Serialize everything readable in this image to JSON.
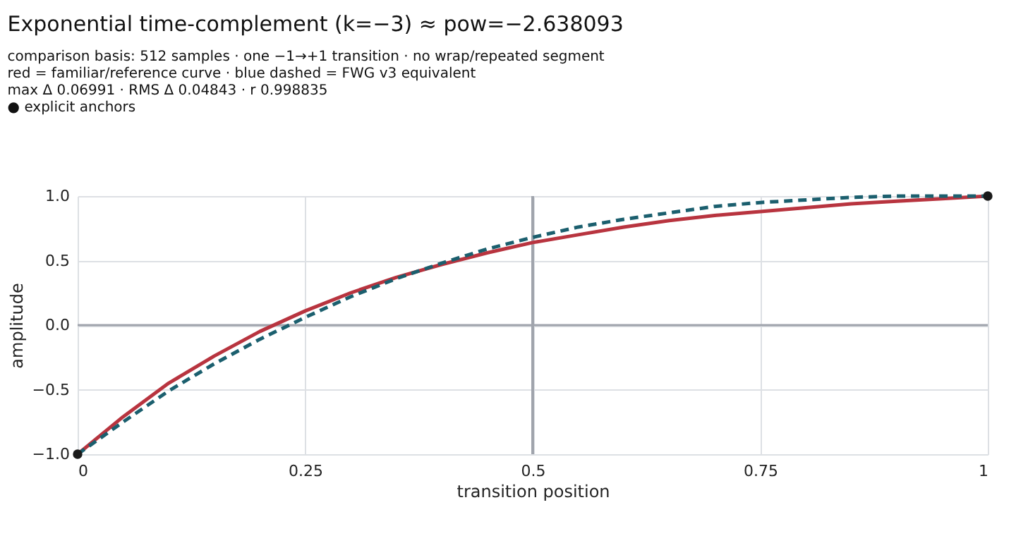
{
  "chart_data": {
    "type": "line",
    "title": "Exponential time-complement (k=−3) ≈ pow=−2.638093",
    "subtitle": "comparison basis: 512 samples · one −1→+1 transition · no wrap/repeated segment",
    "annotations": [
      "red = familiar/reference curve · blue dashed = FWG v3 equivalent",
      "max Δ 0.06991 · RMS Δ 0.04843 · r 0.998835",
      "● explicit anchors"
    ],
    "xlabel": "transition position",
    "ylabel": "amplitude",
    "x": [
      0,
      0.05,
      0.1,
      0.15,
      0.2,
      0.25,
      0.3,
      0.35,
      0.4,
      0.45,
      0.5,
      0.55,
      0.6,
      0.65,
      0.7,
      0.75,
      0.8,
      0.85,
      0.9,
      0.95,
      1
    ],
    "series": [
      {
        "color": "#b8343f",
        "line_style": "solid",
        "values": [
          -1,
          -0.71,
          -0.45,
          -0.24,
          -0.05,
          0.11,
          0.25,
          0.37,
          0.47,
          0.56,
          0.64,
          0.7,
          0.76,
          0.81,
          0.85,
          0.88,
          0.91,
          0.94,
          0.96,
          0.98,
          1
        ]
      },
      {
        "color": "#1b5f6e",
        "line_style": "dashed",
        "values": [
          -1,
          -0.75,
          -0.51,
          -0.3,
          -0.11,
          0.06,
          0.22,
          0.36,
          0.48,
          0.59,
          0.68,
          0.76,
          0.82,
          0.87,
          0.92,
          0.95,
          0.97,
          0.99,
          1.0,
          1.0,
          1
        ]
      },
      {
        "type": "scatter",
        "color": "#1a1a1a",
        "marker": "circle",
        "x": [
          0,
          1
        ],
        "values": [
          -1,
          1
        ]
      }
    ],
    "xlim": [
      0,
      1
    ],
    "ylim": [
      -1,
      1
    ],
    "xticks": [
      0,
      0.25,
      0.5,
      0.75,
      1
    ],
    "yticks": [
      {
        "value": -1,
        "label": "−1.0"
      },
      {
        "value": -0.5,
        "label": "−0.5"
      },
      {
        "value": 0,
        "label": "0.0"
      },
      {
        "value": 0.5,
        "label": "0.5"
      },
      {
        "value": 1,
        "label": "1.0"
      }
    ],
    "ref_lines": [
      {
        "axis": "y",
        "value": 0,
        "color": "#a0a4ac"
      },
      {
        "axis": "x",
        "value": 0.5,
        "color": "#a0a4ac"
      }
    ],
    "grid": true
  }
}
